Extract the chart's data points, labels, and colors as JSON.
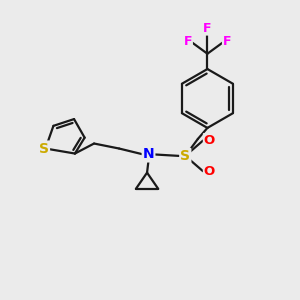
{
  "bg_color": "#ebebeb",
  "atom_colors": {
    "N": "#0000ff",
    "S_sulfonamide": "#ccaa00",
    "S_thiophene": "#ccaa00",
    "O": "#ff0000",
    "F": "#ff00ff"
  },
  "bond_color": "#1a1a1a",
  "bond_width": 1.6
}
